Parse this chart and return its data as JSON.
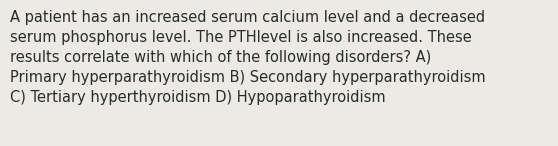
{
  "text": "A patient has an increased serum calcium level and a decreased\nserum phosphorus level. The PTHlevel is also increased. These\nresults correlate with which of the following disorders? A)\nPrimary hyperparathyroidism B) Secondary hyperparathyroidism\nC) Tertiary hyperthyroidism D) Hypoparathyroidism",
  "background_color": "#eceae4",
  "text_color": "#2b2b2b",
  "font_size": 10.5,
  "fig_width": 5.58,
  "fig_height": 1.46,
  "dpi": 100
}
